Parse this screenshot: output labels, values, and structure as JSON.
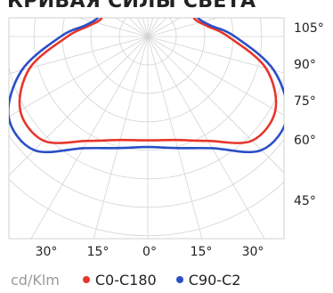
{
  "title": "КРИВАЯ СИЛЫ СВЕТА",
  "chart_data": {
    "type": "polar-line",
    "unit": "cd/Klm",
    "angle_labels_right": [
      "105°",
      "90°",
      "75°",
      "60°",
      "45°"
    ],
    "angle_labels_bottom": [
      "30°",
      "15°",
      "0°",
      "15°",
      "30°"
    ],
    "grid": true,
    "legend": {
      "placement": "bottom"
    },
    "series": [
      {
        "name": "C0-C180",
        "color": "#e8352a",
        "angles_deg": [
          0,
          15,
          30,
          45,
          60,
          75,
          90,
          100,
          110,
          120,
          130,
          140,
          150,
          160,
          170,
          180
        ],
        "values_rel": [
          0.62,
          0.64,
          0.72,
          0.88,
          0.88,
          0.73,
          0.48,
          0.36,
          0.3,
          0.31,
          0.34,
          0.36,
          0.38,
          0.36,
          0.31,
          0.3
        ]
      },
      {
        "name": "C90-C2",
        "color": "#2a4fc6",
        "angles_deg": [
          0,
          15,
          30,
          45,
          60,
          75,
          90,
          100,
          110,
          120,
          130,
          140,
          150,
          160,
          170,
          180
        ],
        "values_rel": [
          0.66,
          0.69,
          0.77,
          0.96,
          0.96,
          0.78,
          0.52,
          0.38,
          0.32,
          0.33,
          0.37,
          0.39,
          0.41,
          0.38,
          0.33,
          0.32
        ]
      }
    ]
  }
}
